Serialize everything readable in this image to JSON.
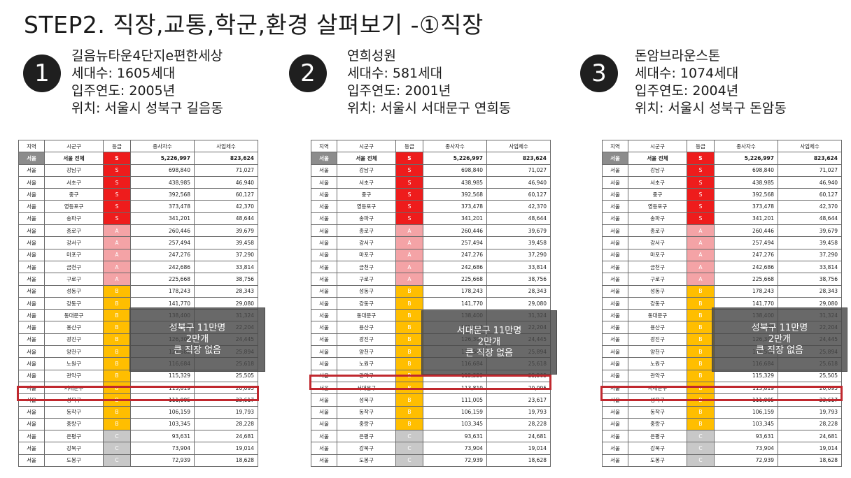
{
  "page_title": "STEP2. 직장,교통,학군,환경 살펴보기 -①직장",
  "colors": {
    "S": "#ee1c1c",
    "A": "#f4a3a6",
    "B": "#ffbe00",
    "C": "#c8c8c8",
    "highlight": "#c0282e"
  },
  "complexes": [
    {
      "number": "1",
      "name": "길음뉴타운4단지e편한세상",
      "households": "세대수: 1605세대",
      "year": "입주연도: 2005년",
      "location": "위치: 서울시 성북구 길음동",
      "overlay": [
        "성북구 11만명",
        "2만개",
        "큰 직장 없음"
      ]
    },
    {
      "number": "2",
      "name": "연희성원",
      "households": "세대수: 581세대",
      "year": "입주연도: 2001년",
      "location": "위치: 서울시 서대문구 연희동",
      "overlay": [
        "서대문구 11만명",
        "2만개",
        "큰 직장 없음"
      ]
    },
    {
      "number": "3",
      "name": "돈암브라운스톤",
      "households": "세대수: 1074세대",
      "year": "입주연도: 2004년",
      "location": "위치: 서울시 성북구 돈암동",
      "overlay": [
        "성북구 11만명",
        "2만개",
        "큰 직장 없음"
      ]
    }
  ],
  "table": {
    "headers": [
      "지역",
      "시군구",
      "등급",
      "종사자수",
      "사업체수"
    ],
    "rows": [
      [
        "서울",
        "서울 전체",
        "S",
        "5,226,997",
        "823,624"
      ],
      [
        "서울",
        "강남구",
        "S",
        "698,840",
        "71,027"
      ],
      [
        "서울",
        "서초구",
        "S",
        "438,985",
        "46,940"
      ],
      [
        "서울",
        "중구",
        "S",
        "392,568",
        "60,127"
      ],
      [
        "서울",
        "영등포구",
        "S",
        "373,478",
        "42,370"
      ],
      [
        "서울",
        "송파구",
        "S",
        "341,201",
        "48,644"
      ],
      [
        "서울",
        "종로구",
        "A",
        "260,446",
        "39,679"
      ],
      [
        "서울",
        "강서구",
        "A",
        "257,494",
        "39,458"
      ],
      [
        "서울",
        "마포구",
        "A",
        "247,276",
        "37,290"
      ],
      [
        "서울",
        "금천구",
        "A",
        "242,686",
        "33,814"
      ],
      [
        "서울",
        "구로구",
        "A",
        "225,668",
        "38,756"
      ],
      [
        "서울",
        "성동구",
        "B",
        "178,243",
        "28,343"
      ],
      [
        "서울",
        "강동구",
        "B",
        "141,770",
        "29,080"
      ],
      [
        "서울",
        "동대문구",
        "B",
        "138,400",
        "31,324"
      ],
      [
        "서울",
        "용산구",
        "B",
        "135,222",
        "22,204"
      ],
      [
        "서울",
        "광진구",
        "B",
        "126,305",
        "24,445"
      ],
      [
        "서울",
        "양천구",
        "B",
        "121,582",
        "25,894"
      ],
      [
        "서울",
        "노원구",
        "B",
        "116,684",
        "25,618"
      ],
      [
        "서울",
        "관악구",
        "B",
        "115,329",
        "25,505"
      ],
      [
        "서울",
        "서대문구",
        "B",
        "113,819",
        "20,095"
      ],
      [
        "서울",
        "성북구",
        "B",
        "111,005",
        "23,617"
      ],
      [
        "서울",
        "동작구",
        "B",
        "106,159",
        "19,793"
      ],
      [
        "서울",
        "중랑구",
        "B",
        "103,345",
        "28,228"
      ],
      [
        "서울",
        "은평구",
        "C",
        "93,631",
        "24,681"
      ],
      [
        "서울",
        "강북구",
        "C",
        "73,904",
        "19,014"
      ],
      [
        "서울",
        "도봉구",
        "C",
        "72,939",
        "18,628"
      ]
    ]
  }
}
